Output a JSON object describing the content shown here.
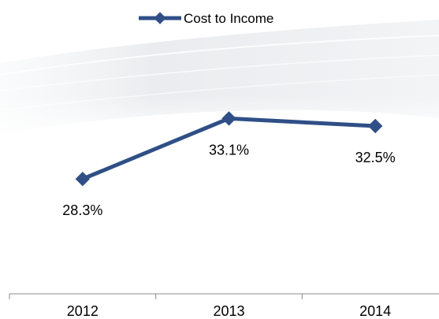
{
  "chart_data": {
    "type": "line",
    "categories": [
      "2012",
      "2013",
      "2014"
    ],
    "series": [
      {
        "name": "Cost to Income",
        "values": [
          28.3,
          33.1,
          32.5
        ],
        "labels": [
          "28.3%",
          "33.1%",
          "32.5%"
        ],
        "color": "#2f4f86"
      }
    ],
    "title": "",
    "xlabel": "",
    "ylabel": "",
    "ylim": [
      20,
      40
    ],
    "grid": false,
    "legend": "top-center"
  }
}
